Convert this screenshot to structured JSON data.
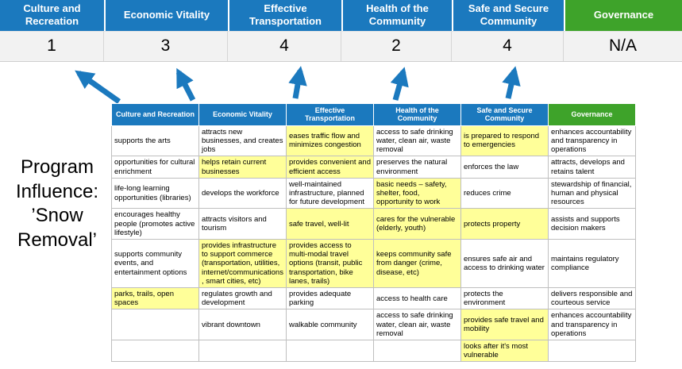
{
  "program_label": "Program Influence: ’Snow Removal’",
  "colors": {
    "header_blue": "#1B79BE",
    "header_green": "#3EA32A",
    "highlight_yellow": "#FFFF99",
    "arrow_blue": "#1B79BE"
  },
  "scoreboard": {
    "columns": [
      {
        "label": "Culture and Recreation",
        "score": "1",
        "color": "blue"
      },
      {
        "label": "Economic Vitality",
        "score": "3",
        "color": "blue"
      },
      {
        "label": "Effective Transportation",
        "score": "4",
        "color": "blue"
      },
      {
        "label": "Health of the Community",
        "score": "2",
        "color": "blue"
      },
      {
        "label": "Safe and Secure Community",
        "score": "4",
        "color": "blue"
      },
      {
        "label": "Governance",
        "score": "N/A",
        "color": "green"
      }
    ]
  },
  "matrix": {
    "columns": [
      {
        "label": "Culture and Recreation",
        "color": "blue"
      },
      {
        "label": "Economic Vitality",
        "color": "blue"
      },
      {
        "label": "Effective Transportation",
        "color": "blue"
      },
      {
        "label": "Health of the Community",
        "color": "blue"
      },
      {
        "label": "Safe and Secure Community",
        "color": "blue"
      },
      {
        "label": "Governance",
        "color": "green"
      }
    ],
    "rows": [
      [
        {
          "text": "supports the arts",
          "highlight": false
        },
        {
          "text": "attracts new businesses, and creates jobs",
          "highlight": false
        },
        {
          "text": "eases traffic flow and minimizes congestion",
          "highlight": true
        },
        {
          "text": "access to safe drinking water, clean air, waste removal",
          "highlight": false
        },
        {
          "text": "is prepared to respond to emergencies",
          "highlight": true
        },
        {
          "text": "enhances accountability and transparency in operations",
          "highlight": false
        }
      ],
      [
        {
          "text": "opportunities for cultural enrichment",
          "highlight": false
        },
        {
          "text": "helps retain current businesses",
          "highlight": true
        },
        {
          "text": "provides convenient and efficient access",
          "highlight": true
        },
        {
          "text": "preserves the natural environment",
          "highlight": false
        },
        {
          "text": "enforces the law",
          "highlight": false
        },
        {
          "text": "attracts, develops and retains talent",
          "highlight": false
        }
      ],
      [
        {
          "text": "life-long learning opportunities (libraries)",
          "highlight": false
        },
        {
          "text": "develops the workforce",
          "highlight": false
        },
        {
          "text": "well-maintained infrastructure, planned for future development",
          "highlight": false
        },
        {
          "text": "basic needs – safety, shelter, food, opportunity to work",
          "highlight": true
        },
        {
          "text": "reduces crime",
          "highlight": false
        },
        {
          "text": "stewardship of financial, human and physical resources",
          "highlight": false
        }
      ],
      [
        {
          "text": "encourages healthy people (promotes active lifestyle)",
          "highlight": false
        },
        {
          "text": "attracts visitors and tourism",
          "highlight": false
        },
        {
          "text": "safe travel, well-lit",
          "highlight": true
        },
        {
          "text": "cares for the vulnerable (elderly, youth)",
          "highlight": true
        },
        {
          "text": "protects property",
          "highlight": true
        },
        {
          "text": "assists and supports decision makers",
          "highlight": false
        }
      ],
      [
        {
          "text": "supports community events, and entertainment options",
          "highlight": false
        },
        {
          "text": "provides infrastructure to support commerce (transportation, utilities, internet/communications, smart cities, etc)",
          "highlight": true
        },
        {
          "text": "provides access to multi-modal travel options (transit, public transportation, bike lanes, trails)",
          "highlight": true
        },
        {
          "text": "keeps community safe from danger (crime, disease, etc)",
          "highlight": true
        },
        {
          "text": "ensures safe air and access to drinking water",
          "highlight": false
        },
        {
          "text": "maintains regulatory compliance",
          "highlight": false
        }
      ],
      [
        {
          "text": "parks, trails, open spaces",
          "highlight": true
        },
        {
          "text": "regulates growth and development",
          "highlight": false
        },
        {
          "text": "provides adequate parking",
          "highlight": false
        },
        {
          "text": "access to health care",
          "highlight": false
        },
        {
          "text": "protects the environment",
          "highlight": false
        },
        {
          "text": "delivers responsible and courteous service",
          "highlight": false
        }
      ],
      [
        {
          "text": "",
          "highlight": false
        },
        {
          "text": "vibrant downtown",
          "highlight": false
        },
        {
          "text": "walkable community",
          "highlight": false
        },
        {
          "text": "access to safe drinking water, clean air, waste removal",
          "highlight": false
        },
        {
          "text": "provides safe travel and mobility",
          "highlight": true
        },
        {
          "text": "enhances accountability and transparency in operations",
          "highlight": false
        }
      ],
      [
        {
          "text": "",
          "highlight": false
        },
        {
          "text": "",
          "highlight": false
        },
        {
          "text": "",
          "highlight": false
        },
        {
          "text": "",
          "highlight": false
        },
        {
          "text": "looks after it's most vulnerable",
          "highlight": true
        },
        {
          "text": "",
          "highlight": false
        }
      ]
    ]
  }
}
